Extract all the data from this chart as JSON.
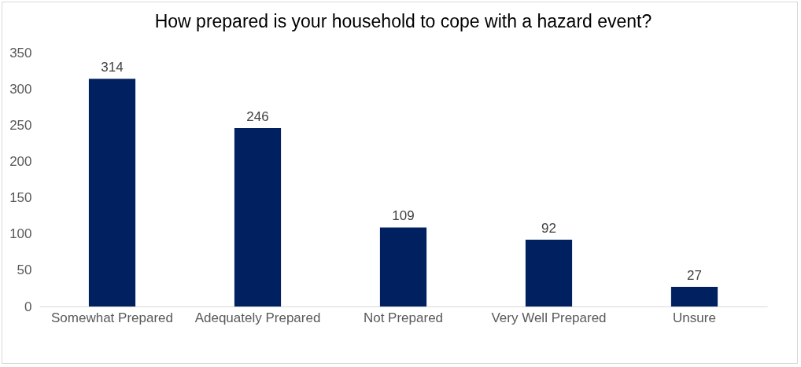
{
  "chart_data": {
    "type": "bar",
    "title": "How prepared is your household to cope with a hazard event?",
    "categories": [
      "Somewhat Prepared",
      "Adequately Prepared",
      "Not Prepared",
      "Very Well Prepared",
      "Unsure"
    ],
    "values": [
      314,
      246,
      109,
      92,
      27
    ],
    "color": "#002060",
    "data_labels": true,
    "ylim": [
      0,
      350
    ],
    "yticks": [
      0,
      50,
      100,
      150,
      200,
      250,
      300,
      350
    ],
    "grid": false
  }
}
